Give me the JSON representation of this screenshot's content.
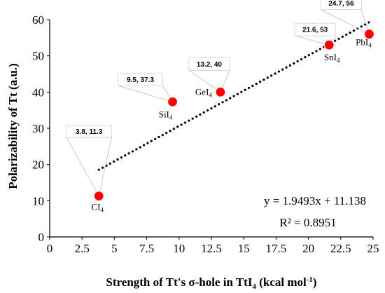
{
  "chart_data": {
    "type": "scatter",
    "xlabel": "Strength of Tt's σ-hole in TtI",
    "xlabel_sub": "4",
    "xlabel_tail": " (kcal mol",
    "xlabel_sup": "-1",
    "xlabel_end": ")",
    "ylabel": "Polarizability of Tt (a.u.)",
    "xlim": [
      0,
      25
    ],
    "ylim": [
      0,
      60
    ],
    "x_ticks": [
      "0",
      "2.5",
      "5",
      "7.5",
      "10",
      "12.5",
      "15",
      "17.5",
      "20",
      "22.5",
      "25"
    ],
    "y_ticks": [
      "0",
      "10",
      "20",
      "30",
      "40",
      "50",
      "60"
    ],
    "point_color": "#ff0000",
    "points": [
      {
        "x": 3.8,
        "y": 11.3,
        "name": "CI",
        "sub": "4",
        "callout": "3.8, 11.3"
      },
      {
        "x": 9.5,
        "y": 37.3,
        "name": "SiI",
        "sub": "4",
        "callout": "9.5, 37.3"
      },
      {
        "x": 13.2,
        "y": 40,
        "name": "GeI",
        "sub": "4",
        "callout": "13.2, 40"
      },
      {
        "x": 21.6,
        "y": 53,
        "name": "SnI",
        "sub": "4",
        "callout": "21.6, 53"
      },
      {
        "x": 24.7,
        "y": 56,
        "name": "PbI",
        "sub": "4",
        "callout": "24.7, 56"
      }
    ],
    "trendline": {
      "slope": 1.9493,
      "intercept": 11.138,
      "style": "dotted"
    },
    "equation": "y = 1.9493x + 11.138",
    "r2_label": "R² = 0.8951",
    "grid": false
  }
}
